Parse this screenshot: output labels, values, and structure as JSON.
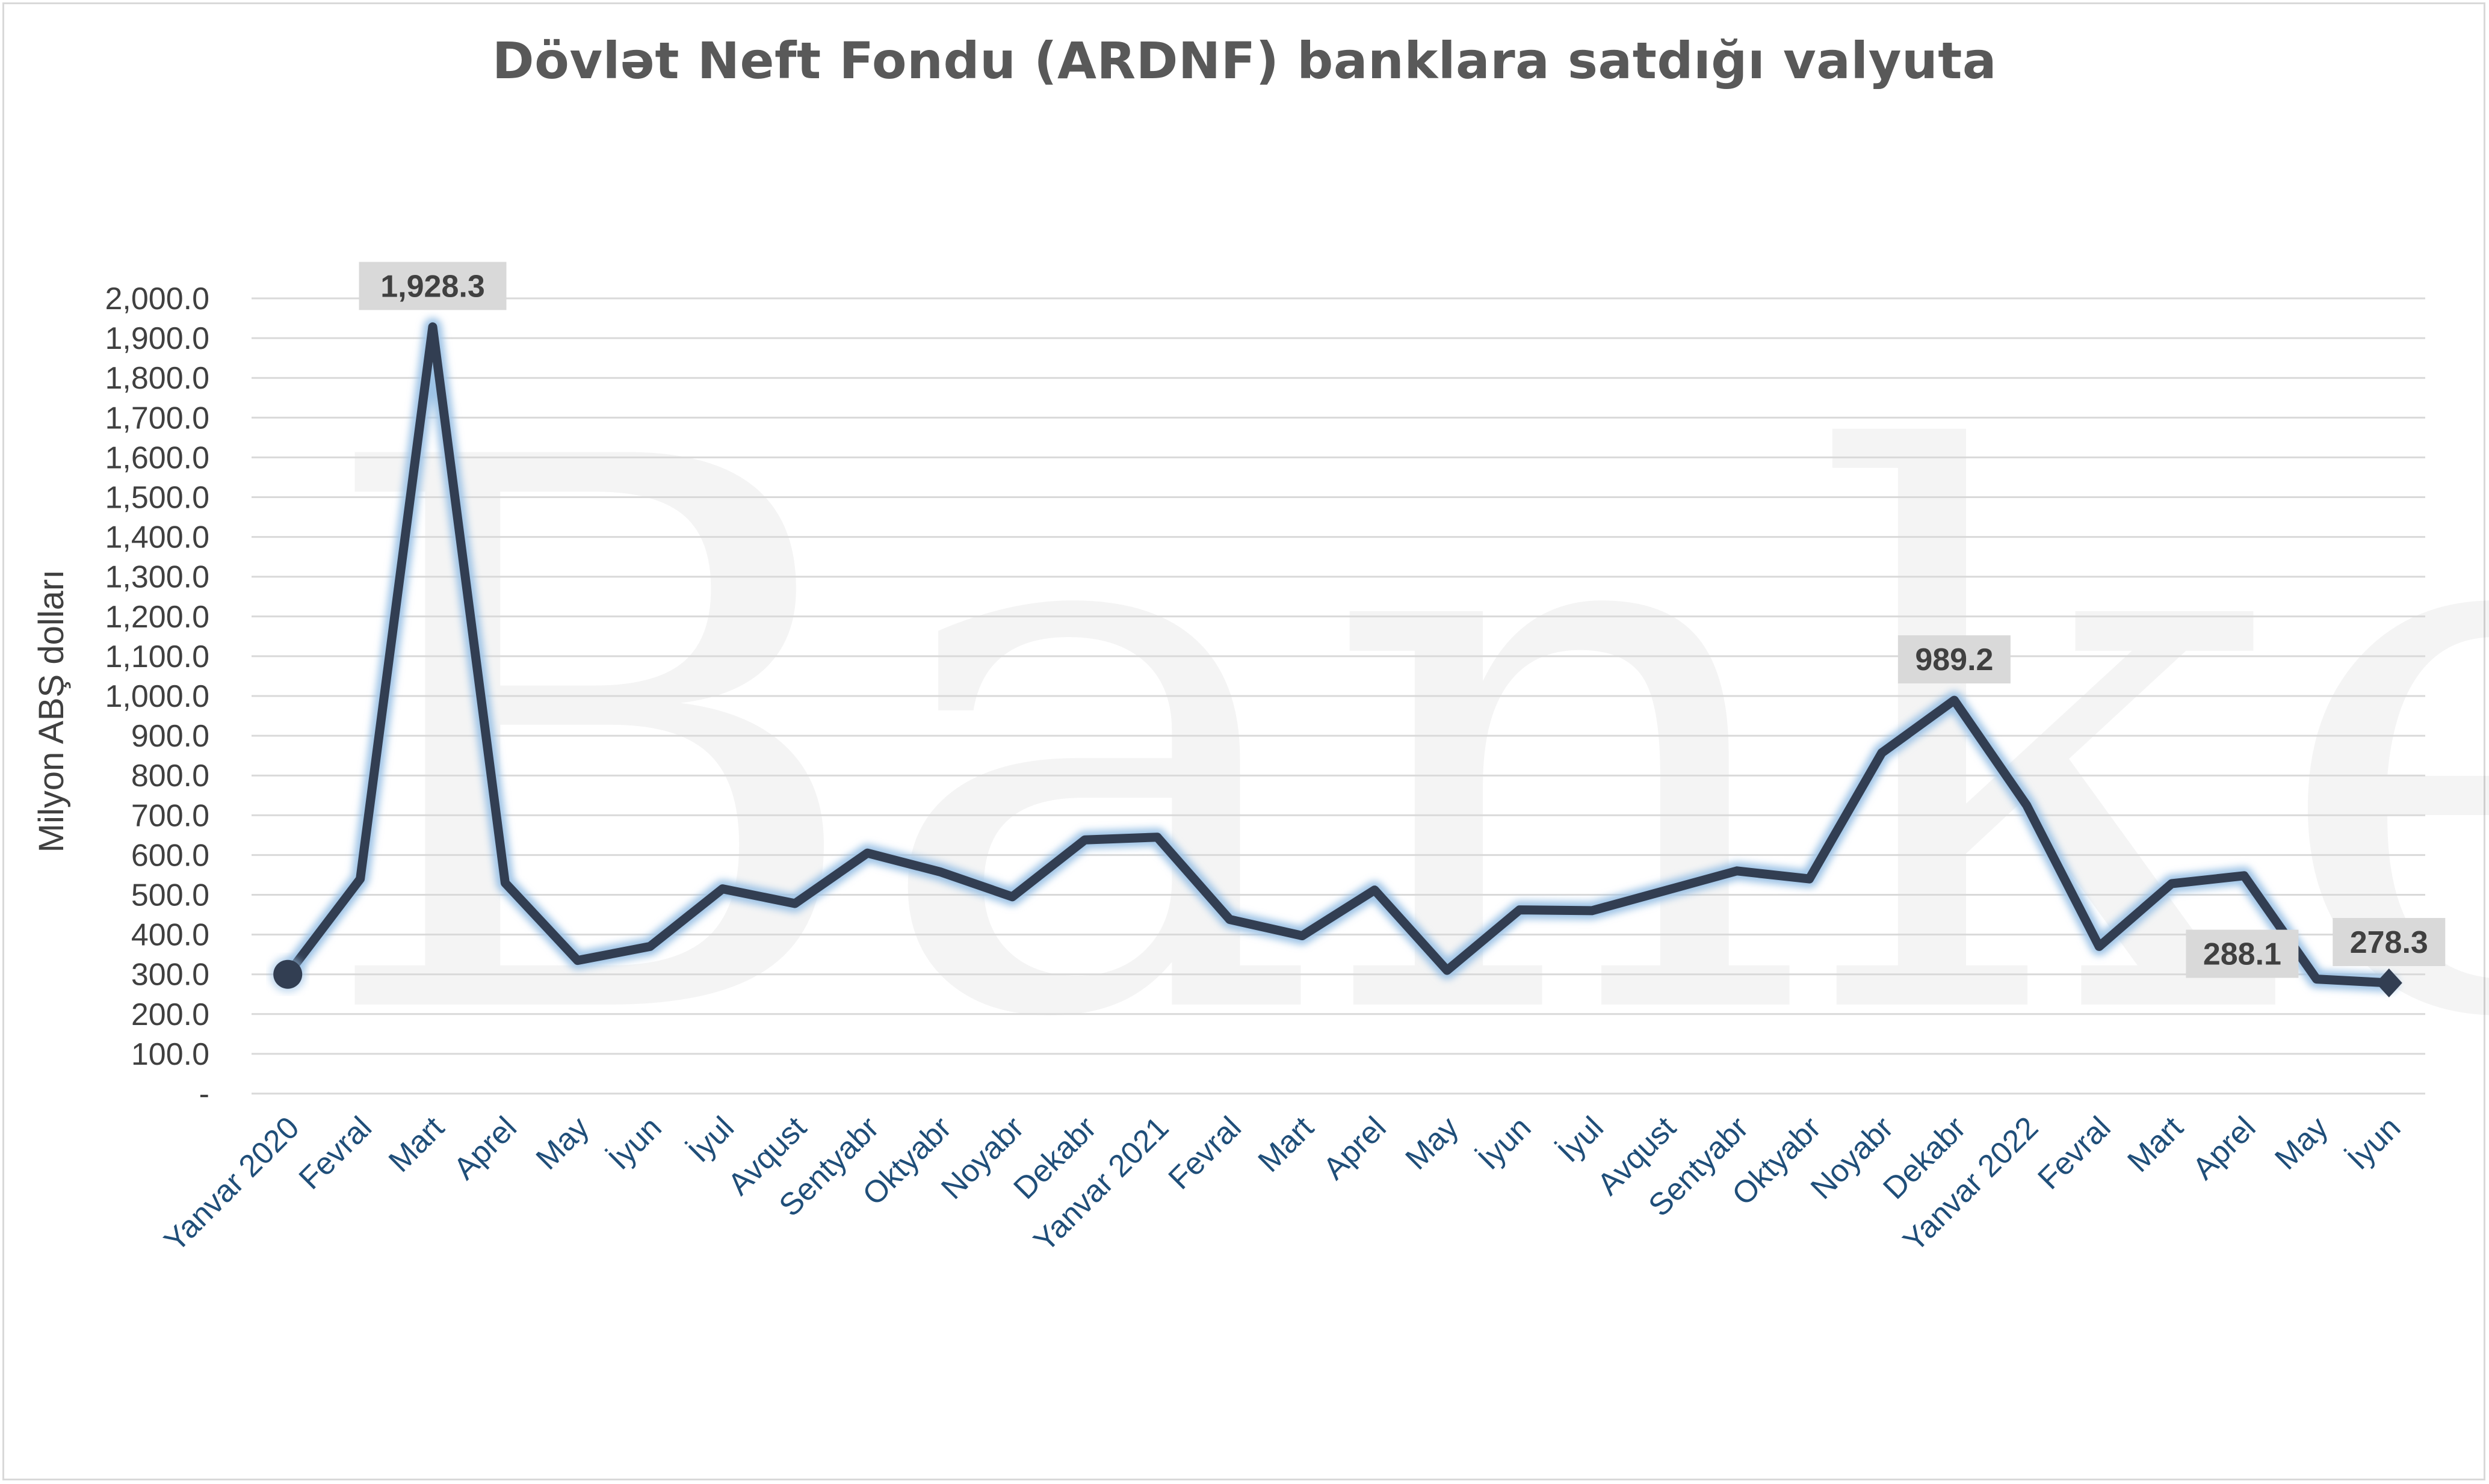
{
  "chart_data": {
    "type": "line",
    "title": "Dövlət Neft Fondu (ARDNF) banklara satdığı valyuta",
    "ylabel": "Milyon ABŞ dolları",
    "xlabel": "",
    "ylim": [
      0,
      2000
    ],
    "yticks": [
      "-",
      "100.0",
      "200.0",
      "300.0",
      "400.0",
      "500.0",
      "600.0",
      "700.0",
      "800.0",
      "900.0",
      "1,000.0",
      "1,100.0",
      "1,200.0",
      "1,300.0",
      "1,400.0",
      "1,500.0",
      "1,600.0",
      "1,700.0",
      "1,800.0",
      "1,900.0",
      "2,000.0"
    ],
    "grid": true,
    "legend": "none",
    "categories": [
      "Yanvar 2020",
      "Fevral",
      "Mart",
      "Aprel",
      "May",
      "İyun",
      "İyul",
      "Avqust",
      "Sentyabr",
      "Oktyabr",
      "Noyabr",
      "Dekabr",
      "Yanvar 2021",
      "Fevral",
      "Mart",
      "Aprel",
      "May",
      "İyun",
      "İyul",
      "Avqust",
      "Sentyabr",
      "Oktyabr",
      "Noyabr",
      "Dekabr",
      "Yanvar 2022",
      "Fevral",
      "Mart",
      "Aprel",
      "May",
      "İyun"
    ],
    "values": [
      300,
      540,
      1928.3,
      530,
      335,
      370,
      515,
      478,
      605,
      558,
      495,
      638,
      645,
      438,
      397,
      512,
      310,
      462,
      460,
      510,
      560,
      540,
      857,
      989.2,
      725,
      370,
      528,
      548,
      288.1,
      278.3
    ],
    "data_labels": [
      {
        "index": 2,
        "text": "1,928.3",
        "position": "above"
      },
      {
        "index": 23,
        "text": "989.2",
        "position": "above"
      },
      {
        "index": 28,
        "text": "288.1",
        "position": "left"
      },
      {
        "index": 29,
        "text": "278.3",
        "position": "above"
      }
    ],
    "line_color": "#323e52",
    "glow_color": "#9dc3e6",
    "watermark": "Banker.az"
  }
}
